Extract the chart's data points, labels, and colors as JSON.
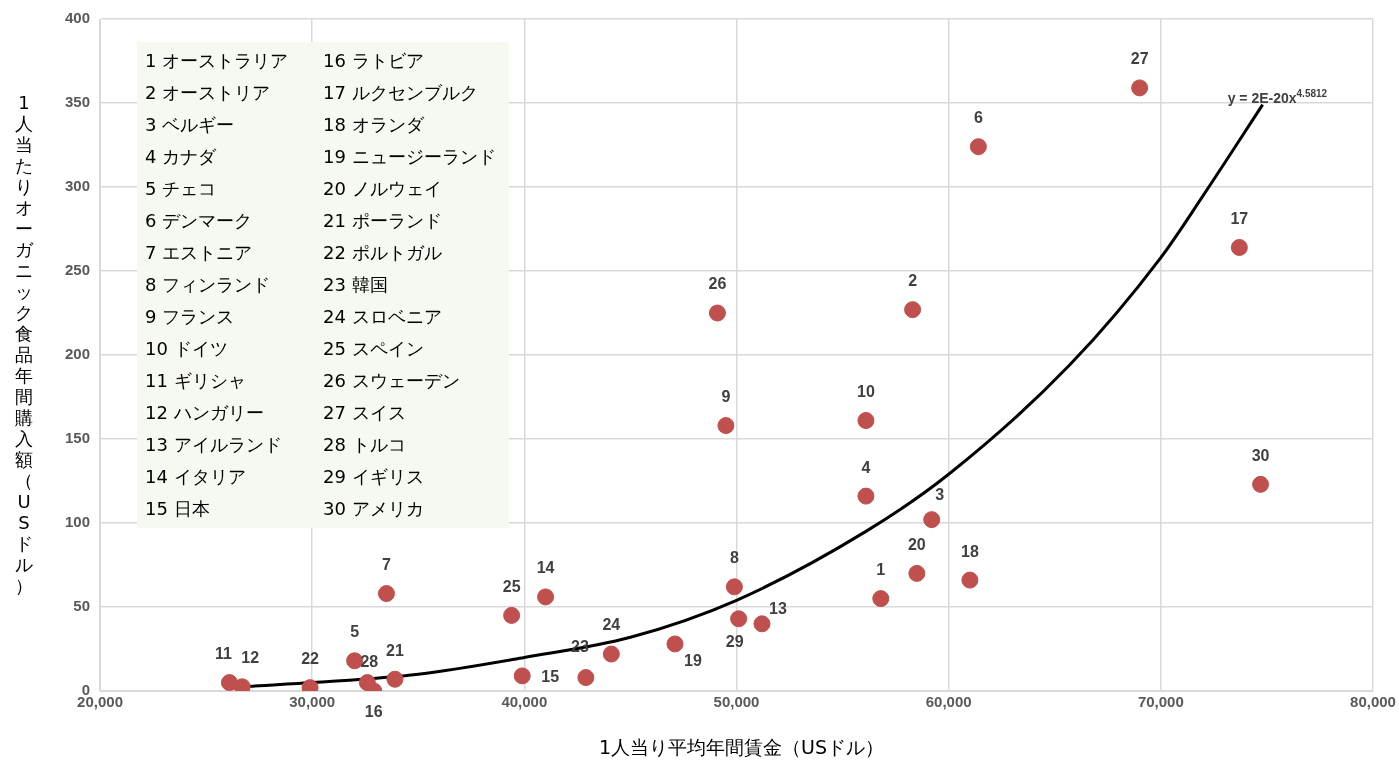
{
  "chart_data": {
    "type": "scatter",
    "xlabel": "1人当り平均年間賃金（USドル）",
    "ylabel": "1人当たりオーガニック食品年間購入額（USドル）",
    "xlim": [
      20000,
      80000
    ],
    "xticks": [
      {
        "value": 20000,
        "label": "20,000"
      },
      {
        "value": 30000,
        "label": "30,000"
      },
      {
        "value": 40000,
        "label": "40,000"
      },
      {
        "value": 50000,
        "label": "50,000"
      },
      {
        "value": 60000,
        "label": "60,000"
      },
      {
        "value": 70000,
        "label": "70,000"
      },
      {
        "value": 80000,
        "label": "80,000"
      }
    ],
    "ylim": [
      0,
      400
    ],
    "yticks": [
      0,
      50,
      100,
      150,
      200,
      250,
      300,
      350,
      400
    ],
    "grid": true,
    "legend": false,
    "marker": "circle",
    "series": [
      {
        "color": "#c0504d",
        "x": [
          56800,
          58300,
          59200,
          56100,
          32000,
          61400,
          33500,
          49900,
          49500,
          56100,
          26100,
          26700,
          51200,
          41000,
          39900,
          32900,
          73700,
          61000,
          47100,
          58500,
          33900,
          29900,
          42900,
          44100,
          39400,
          49100,
          69000,
          32600,
          50100,
          74700
        ],
        "values": [
          55,
          227,
          102,
          116,
          18,
          324,
          58,
          62,
          158,
          161,
          5,
          2.5,
          40,
          56,
          9,
          0,
          264,
          66,
          28,
          70,
          7,
          2,
          8,
          22,
          45,
          225,
          359,
          5,
          43,
          123
        ]
      },
      {
        "type": "line",
        "marker": "none",
        "color": "#000000",
        "x": [
          26700,
          30000,
          35000,
          40000,
          45000,
          50000,
          56100,
          60000,
          65700,
          70000,
          72000,
          74800
        ],
        "values": [
          2.5,
          5,
          10,
          20,
          32,
          54,
          95,
          129,
          194,
          258,
          295,
          349
        ]
      }
    ],
    "annotations": [
      {
        "text": "y = 2E-20x$^{4.5812}$",
        "x": 74800,
        "y": 349
      },
      {
        "text": "1",
        "x": 56800,
        "y": 55
      },
      {
        "text": "2",
        "x": 58300,
        "y": 227
      },
      {
        "text": "3",
        "x": 59200,
        "y": 102
      },
      {
        "text": "4",
        "x": 56100,
        "y": 116
      },
      {
        "text": "5",
        "x": 32000,
        "y": 18
      },
      {
        "text": "6",
        "x": 61400,
        "y": 324
      },
      {
        "text": "7",
        "x": 33500,
        "y": 58
      },
      {
        "text": "8",
        "x": 49900,
        "y": 62
      },
      {
        "text": "9",
        "x": 49500,
        "y": 158
      },
      {
        "text": "10",
        "x": 56100,
        "y": 161
      },
      {
        "text": "11",
        "x": 26100,
        "y": 5
      },
      {
        "text": "12",
        "x": 26700,
        "y": 2.5
      },
      {
        "text": "13",
        "x": 51200,
        "y": 40
      },
      {
        "text": "14",
        "x": 41000,
        "y": 56
      },
      {
        "text": "15",
        "x": 39900,
        "y": 9
      },
      {
        "text": "16",
        "x": 32900,
        "y": 0
      },
      {
        "text": "17",
        "x": 73700,
        "y": 264
      },
      {
        "text": "18",
        "x": 61000,
        "y": 66
      },
      {
        "text": "19",
        "x": 47100,
        "y": 28
      },
      {
        "text": "20",
        "x": 58500,
        "y": 70
      },
      {
        "text": "21",
        "x": 33900,
        "y": 7
      },
      {
        "text": "22",
        "x": 29900,
        "y": 2
      },
      {
        "text": "23",
        "x": 42900,
        "y": 8
      },
      {
        "text": "24",
        "x": 44100,
        "y": 22
      },
      {
        "text": "25",
        "x": 39400,
        "y": 45
      },
      {
        "text": "26",
        "x": 49100,
        "y": 225
      },
      {
        "text": "27",
        "x": 69000,
        "y": 359
      },
      {
        "text": "28",
        "x": 32600,
        "y": 5
      },
      {
        "text": "29",
        "x": 50100,
        "y": 43
      },
      {
        "text": "30",
        "x": 74700,
        "y": 123
      },
      "1 オーストラリア",
      "2 オーストリア",
      "3 ベルギー",
      "4 カナダ",
      "5 チェコ",
      "6 デンマーク",
      "7 エストニア",
      "8 フィンランド",
      "9 フランス",
      "10 ドイツ",
      "11 ギリシャ",
      "12 ハンガリー",
      "13 アイルランド",
      "14 イタリア",
      "15 日本",
      "16 ラトビア",
      "17 ルクセンブルク",
      "18 オランダ",
      "19 ニュージーランド",
      "20 ノルウェイ",
      "21 ポーランド",
      "22 ポルトガル",
      "23 韓国",
      "24 スロベニア",
      "25 スペイン",
      "26 スウェーデン",
      "27 スイス",
      "28 トルコ",
      "29 イギリス",
      "30 アメリカ"
    ]
  }
}
